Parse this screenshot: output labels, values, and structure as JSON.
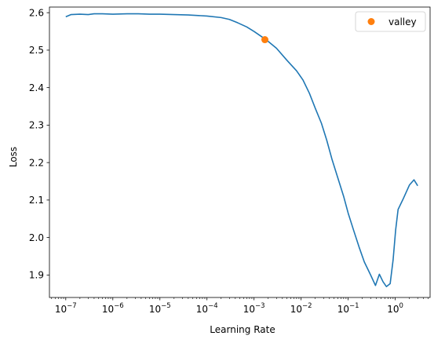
{
  "chart_data": {
    "type": "line",
    "xscale": "log",
    "xlabel": "Learning Rate",
    "ylabel": "Loss",
    "xlim": [
      4.5e-08,
      5.5
    ],
    "ylim": [
      1.84,
      2.615
    ],
    "xticks": [
      {
        "value": 1e-07,
        "base": "10",
        "exp": "−7"
      },
      {
        "value": 1e-06,
        "base": "10",
        "exp": "−6"
      },
      {
        "value": 1e-05,
        "base": "10",
        "exp": "−5"
      },
      {
        "value": 0.0001,
        "base": "10",
        "exp": "−4"
      },
      {
        "value": 0.001,
        "base": "10",
        "exp": "−3"
      },
      {
        "value": 0.01,
        "base": "10",
        "exp": "−2"
      },
      {
        "value": 0.1,
        "base": "10",
        "exp": "−1"
      },
      {
        "value": 1,
        "base": "10",
        "exp": "0"
      }
    ],
    "yticks": [
      {
        "value": 1.9,
        "label": "1.9"
      },
      {
        "value": 2.0,
        "label": "2.0"
      },
      {
        "value": 2.1,
        "label": "2.1"
      },
      {
        "value": 2.2,
        "label": "2.2"
      },
      {
        "value": 2.3,
        "label": "2.3"
      },
      {
        "value": 2.4,
        "label": "2.4"
      },
      {
        "value": 2.5,
        "label": "2.5"
      },
      {
        "value": 2.6,
        "label": "2.6"
      }
    ],
    "grid": false,
    "legend": {
      "position": "top-right",
      "entries": [
        {
          "label": "valley",
          "color": "#ff7f0e",
          "marker": "circle"
        }
      ]
    },
    "series": [
      {
        "color": "#1f77b4",
        "points": [
          [
            1e-07,
            2.589
          ],
          [
            1.3e-07,
            2.595
          ],
          [
            2e-07,
            2.596
          ],
          [
            3e-07,
            2.595
          ],
          [
            4e-07,
            2.597
          ],
          [
            6e-07,
            2.597
          ],
          [
            1e-06,
            2.596
          ],
          [
            2e-06,
            2.597
          ],
          [
            3.5e-06,
            2.597
          ],
          [
            6e-06,
            2.596
          ],
          [
            1e-05,
            2.596
          ],
          [
            2e-05,
            2.595
          ],
          [
            4e-05,
            2.594
          ],
          [
            0.0001,
            2.591
          ],
          [
            0.0002,
            2.587
          ],
          [
            0.0003,
            2.582
          ],
          [
            0.00045,
            2.573
          ],
          [
            0.0007,
            2.562
          ],
          [
            0.001,
            2.55
          ],
          [
            0.0018,
            2.528
          ],
          [
            0.003,
            2.505
          ],
          [
            0.005,
            2.473
          ],
          [
            0.008,
            2.445
          ],
          [
            0.011,
            2.42
          ],
          [
            0.015,
            2.385
          ],
          [
            0.02,
            2.345
          ],
          [
            0.027,
            2.305
          ],
          [
            0.035,
            2.26
          ],
          [
            0.045,
            2.21
          ],
          [
            0.06,
            2.16
          ],
          [
            0.08,
            2.11
          ],
          [
            0.1,
            2.065
          ],
          [
            0.13,
            2.02
          ],
          [
            0.17,
            1.975
          ],
          [
            0.22,
            1.935
          ],
          [
            0.3,
            1.9
          ],
          [
            0.38,
            1.872
          ],
          [
            0.46,
            1.902
          ],
          [
            0.55,
            1.882
          ],
          [
            0.65,
            1.869
          ],
          [
            0.78,
            1.877
          ],
          [
            0.9,
            1.94
          ],
          [
            1.02,
            2.02
          ],
          [
            1.15,
            2.075
          ],
          [
            1.5,
            2.105
          ],
          [
            2.0,
            2.14
          ],
          [
            2.5,
            2.154
          ],
          [
            3.0,
            2.138
          ]
        ]
      },
      {
        "name": "valley",
        "type": "scatter",
        "color": "#ff7f0e",
        "points": [
          [
            0.0017,
            2.528
          ]
        ]
      }
    ]
  }
}
